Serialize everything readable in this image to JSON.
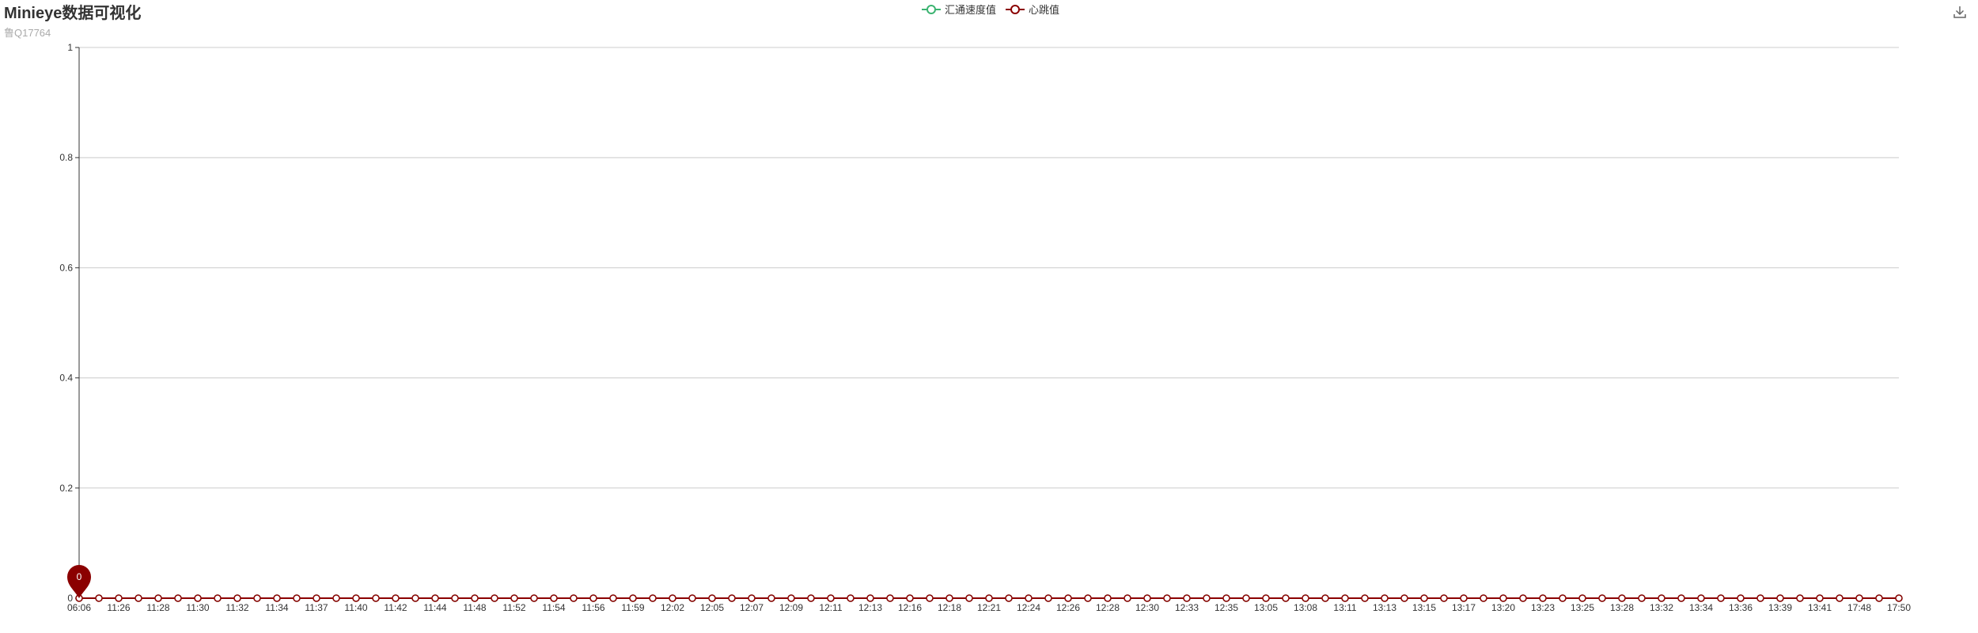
{
  "header": {
    "title": "Minieye数据可视化",
    "subtitle": "鲁Q17764",
    "download_icon": "download-icon"
  },
  "chart_data": {
    "type": "line",
    "title": "Minieye数据可视化",
    "subtitle": "鲁Q17764",
    "categories": [
      "06:06",
      "",
      "11:26",
      "",
      "11:28",
      "",
      "11:30",
      "",
      "11:32",
      "",
      "11:34",
      "",
      "11:37",
      "",
      "11:40",
      "",
      "11:42",
      "",
      "11:44",
      "",
      "11:48",
      "",
      "11:52",
      "",
      "11:54",
      "",
      "11:56",
      "",
      "11:59",
      "",
      "12:02",
      "",
      "12:05",
      "",
      "12:07",
      "",
      "12:09",
      "",
      "12:11",
      "",
      "12:13",
      "",
      "12:16",
      "",
      "12:18",
      "",
      "12:21",
      "",
      "12:24",
      "",
      "12:26",
      "",
      "12:28",
      "",
      "12:30",
      "",
      "12:33",
      "",
      "12:35",
      "",
      "13:05",
      "",
      "13:08",
      "",
      "13:11",
      "",
      "13:13",
      "",
      "13:15",
      "",
      "13:17",
      "",
      "13:20",
      "",
      "13:23",
      "",
      "13:25",
      "",
      "13:28",
      "",
      "13:32",
      "",
      "13:34",
      "",
      "13:36",
      "",
      "13:39",
      "",
      "13:41",
      "",
      "17:48",
      "",
      "17:50"
    ],
    "series": [
      {
        "name": "汇通速度值",
        "color": "#3cb371",
        "values": [
          0,
          0,
          0,
          0,
          0,
          0,
          0,
          0,
          0,
          0,
          0,
          0,
          0,
          0,
          0,
          0,
          0,
          0,
          0,
          0,
          0,
          0,
          0,
          0,
          0,
          0,
          0,
          0,
          0,
          0,
          0,
          0,
          0,
          0,
          0,
          0,
          0,
          0,
          0,
          0,
          0,
          0,
          0,
          0,
          0,
          0,
          0,
          0,
          0,
          0,
          0,
          0,
          0,
          0,
          0,
          0,
          0,
          0,
          0,
          0,
          0,
          0,
          0,
          0,
          0,
          0,
          0,
          0,
          0,
          0,
          0,
          0,
          0,
          0,
          0,
          0,
          0,
          0,
          0,
          0,
          0,
          0,
          0,
          0,
          0,
          0,
          0,
          0,
          0,
          0,
          0,
          0,
          0
        ]
      },
      {
        "name": "心跳值",
        "color": "#8b0000",
        "values": [
          0,
          0,
          0,
          0,
          0,
          0,
          0,
          0,
          0,
          0,
          0,
          0,
          0,
          0,
          0,
          0,
          0,
          0,
          0,
          0,
          0,
          0,
          0,
          0,
          0,
          0,
          0,
          0,
          0,
          0,
          0,
          0,
          0,
          0,
          0,
          0,
          0,
          0,
          0,
          0,
          0,
          0,
          0,
          0,
          0,
          0,
          0,
          0,
          0,
          0,
          0,
          0,
          0,
          0,
          0,
          0,
          0,
          0,
          0,
          0,
          0,
          0,
          0,
          0,
          0,
          0,
          0,
          0,
          0,
          0,
          0,
          0,
          0,
          0,
          0,
          0,
          0,
          0,
          0,
          0,
          0,
          0,
          0,
          0,
          0,
          0,
          0,
          0,
          0,
          0,
          0,
          0,
          0
        ]
      }
    ],
    "markpoint": {
      "series": "心跳值",
      "index": 0,
      "label": "0"
    },
    "ylim": [
      0,
      1
    ],
    "yticks": [
      "0",
      "0.2",
      "0.4",
      "0.6",
      "0.8",
      "1"
    ],
    "ytick_values": [
      0,
      0.2,
      0.4,
      0.6,
      0.8,
      1
    ],
    "grid": true,
    "legend_position": "top-center",
    "xlabel": "",
    "ylabel": ""
  }
}
